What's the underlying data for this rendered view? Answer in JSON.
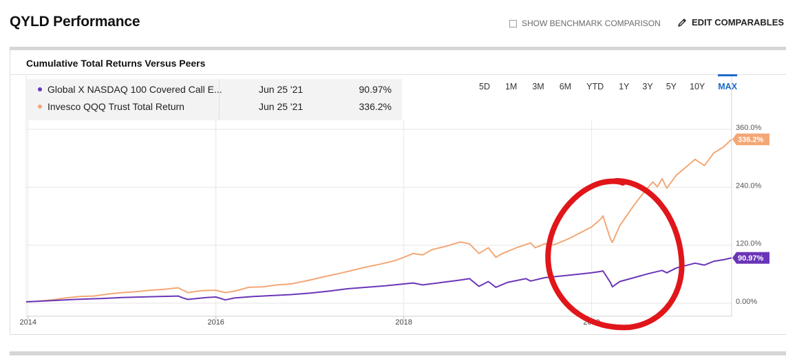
{
  "header": {
    "title": "QYLD Performance",
    "benchmark_label": "SHOW BENCHMARK COMPARISON",
    "edit_label": "EDIT COMPARABLES"
  },
  "panel": {
    "title": "Cumulative Total Returns Versus Peers"
  },
  "legend": [
    {
      "name": "Global X NASDAQ 100 Covered Call E...",
      "date": "Jun 25 '21",
      "value": "90.97%",
      "color": "#6a35b8"
    },
    {
      "name": "Invesco QQQ Trust Total Return",
      "date": "Jun 25 '21",
      "value": "336.2%",
      "color": "#f3a775"
    }
  ],
  "ranges": {
    "items": [
      "5D",
      "1M",
      "3M",
      "6M",
      "YTD",
      "1Y",
      "3Y",
      "5Y",
      "10Y",
      "MAX"
    ],
    "active": "MAX"
  },
  "annotation": {
    "type": "hand-drawn circle",
    "color": "#e0161b",
    "around": "Feb-Mar 2020 drawdown"
  },
  "chart_data": {
    "type": "line",
    "title": "Cumulative Total Returns Versus Peers",
    "ylim": [
      -10,
      360
    ],
    "y_ticks": [
      "360.0%",
      "240.0%",
      "120.0%",
      "0.00%"
    ],
    "y_tick_values": [
      360,
      240,
      120,
      0
    ],
    "x_ticks": [
      "2014",
      "2016",
      "2018",
      "2020"
    ],
    "x_tick_values": [
      2014.0,
      2016.0,
      2018.0,
      2020.0
    ],
    "xlim": [
      2013.98,
      2021.49
    ],
    "grid": true,
    "series": [
      {
        "name": "Invesco QQQ Trust Total Return",
        "color": "#f3a775",
        "end_label": "336.2%",
        "x": [
          2013.98,
          2014.1,
          2014.25,
          2014.4,
          2014.55,
          2014.7,
          2014.85,
          2015.0,
          2015.15,
          2015.3,
          2015.45,
          2015.6,
          2015.65,
          2015.7,
          2015.85,
          2016.0,
          2016.1,
          2016.2,
          2016.35,
          2016.5,
          2016.65,
          2016.8,
          2017.0,
          2017.15,
          2017.3,
          2017.45,
          2017.6,
          2017.75,
          2017.9,
          2018.0,
          2018.1,
          2018.2,
          2018.3,
          2018.45,
          2018.6,
          2018.7,
          2018.8,
          2018.9,
          2018.98,
          2019.05,
          2019.2,
          2019.35,
          2019.4,
          2019.5,
          2019.6,
          2019.75,
          2019.9,
          2020.0,
          2020.1,
          2020.12,
          2020.2,
          2020.22,
          2020.3,
          2020.45,
          2020.55,
          2020.65,
          2020.7,
          2020.75,
          2020.8,
          2020.9,
          2021.0,
          2021.1,
          2021.2,
          2021.3,
          2021.4,
          2021.49
        ],
        "values": [
          0,
          1,
          4,
          8,
          11,
          12,
          16,
          19,
          21,
          24,
          26,
          29,
          24,
          19,
          23,
          24,
          19,
          22,
          30,
          31,
          35,
          37,
          45,
          52,
          58,
          65,
          72,
          78,
          85,
          92,
          100,
          97,
          108,
          115,
          124,
          120,
          100,
          112,
          92,
          100,
          112,
          122,
          112,
          120,
          118,
          130,
          145,
          155,
          172,
          178,
          130,
          123,
          158,
          200,
          225,
          248,
          238,
          255,
          235,
          262,
          278,
          295,
          282,
          308,
          320,
          336.2
        ]
      },
      {
        "name": "Global X NASDAQ 100 Covered Call E...",
        "color": "#6a35b8",
        "end_label": "90.97%",
        "x": [
          2013.98,
          2014.2,
          2014.5,
          2014.8,
          2015.0,
          2015.2,
          2015.4,
          2015.6,
          2015.65,
          2015.7,
          2015.9,
          2016.0,
          2016.1,
          2016.2,
          2016.4,
          2016.6,
          2016.8,
          2017.0,
          2017.2,
          2017.4,
          2017.6,
          2017.8,
          2018.0,
          2018.1,
          2018.2,
          2018.4,
          2018.6,
          2018.7,
          2018.8,
          2018.9,
          2018.98,
          2019.1,
          2019.3,
          2019.35,
          2019.5,
          2019.7,
          2019.9,
          2020.0,
          2020.1,
          2020.12,
          2020.2,
          2020.22,
          2020.3,
          2020.45,
          2020.6,
          2020.75,
          2020.8,
          2020.9,
          2021.0,
          2021.1,
          2021.2,
          2021.3,
          2021.4,
          2021.49
        ],
        "values": [
          0,
          2,
          5,
          7,
          9,
          10,
          11,
          12,
          8,
          5,
          9,
          10,
          4,
          8,
          11,
          13,
          15,
          18,
          22,
          27,
          30,
          33,
          37,
          39,
          35,
          40,
          45,
          48,
          32,
          42,
          30,
          40,
          48,
          43,
          50,
          54,
          58,
          60,
          63,
          64,
          40,
          31,
          42,
          50,
          58,
          65,
          60,
          70,
          75,
          80,
          76,
          84,
          87,
          90.97
        ]
      }
    ]
  }
}
